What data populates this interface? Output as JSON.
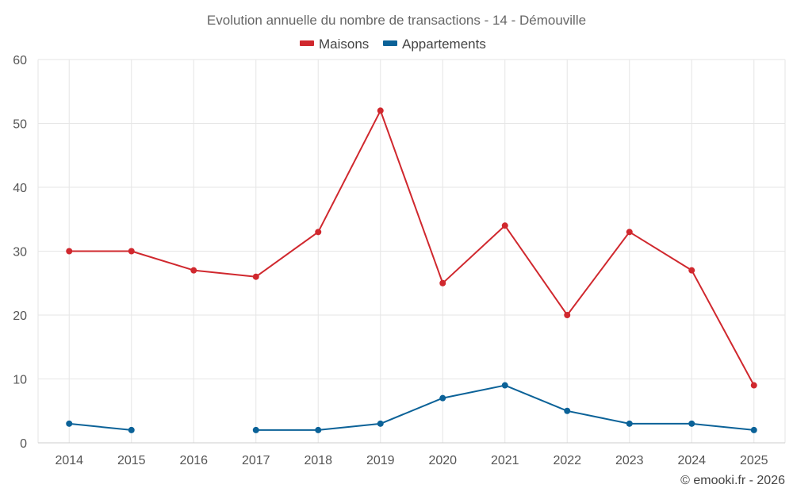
{
  "chart_data": {
    "type": "line",
    "title": "Evolution annuelle du nombre de transactions - 14 - Démouville",
    "categories": [
      "2014",
      "2015",
      "2016",
      "2017",
      "2018",
      "2019",
      "2020",
      "2021",
      "2022",
      "2023",
      "2024",
      "2025"
    ],
    "ylim": [
      0,
      60
    ],
    "yticks": [
      0,
      10,
      20,
      30,
      40,
      50,
      60
    ],
    "grid": true,
    "legend_position": "top-center",
    "series": [
      {
        "name": "Maisons",
        "color": "#d0282e",
        "values": [
          30,
          30,
          27,
          26,
          33,
          52,
          25,
          34,
          20,
          33,
          27,
          9
        ]
      },
      {
        "name": "Appartements",
        "color": "#0b6298",
        "values": [
          3,
          2,
          null,
          2,
          2,
          3,
          7,
          9,
          5,
          3,
          3,
          2
        ]
      }
    ],
    "credit": "© emooki.fr - 2026"
  }
}
